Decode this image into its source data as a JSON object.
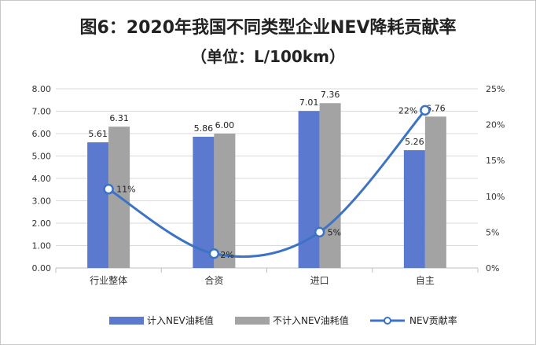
{
  "title": "图6：2020年我国不同类型企业NEV降耗贡献率",
  "subtitle": "（单位：L/100km）",
  "colors": {
    "bar1": "#5b79cf",
    "bar2": "#a3a3a3",
    "line": "#3c73c6",
    "grid": "#d9d9d9",
    "axis": "#bfbfbf"
  },
  "chart_data": {
    "type": "bar",
    "categories": [
      "行业整体",
      "合资",
      "进口",
      "自主"
    ],
    "series": [
      {
        "name": "计入NEV油耗值",
        "type": "bar",
        "axis": "left",
        "values": [
          5.61,
          5.86,
          7.01,
          5.26
        ],
        "labels": [
          "5.61",
          "5.86",
          "7.01",
          "5.26"
        ]
      },
      {
        "name": "不计入NEV油耗值",
        "type": "bar",
        "axis": "left",
        "values": [
          6.31,
          6.0,
          7.36,
          6.76
        ],
        "labels": [
          "6.31",
          "6.00",
          "7.36",
          "6.76"
        ]
      },
      {
        "name": "NEV贡献率",
        "type": "line",
        "axis": "right",
        "values": [
          11,
          2,
          5,
          22
        ],
        "labels": [
          "11%",
          "2%",
          "5%",
          "22%"
        ]
      }
    ],
    "y_left": {
      "min": 0,
      "max": 8,
      "step": 1,
      "ticks": [
        "0.00",
        "1.00",
        "2.00",
        "3.00",
        "4.00",
        "5.00",
        "6.00",
        "7.00",
        "8.00"
      ]
    },
    "y_right": {
      "min": 0,
      "max": 25,
      "step": 5,
      "ticks": [
        "0%",
        "5%",
        "10%",
        "15%",
        "20%",
        "25%"
      ]
    },
    "grid": true,
    "legend_position": "bottom"
  }
}
